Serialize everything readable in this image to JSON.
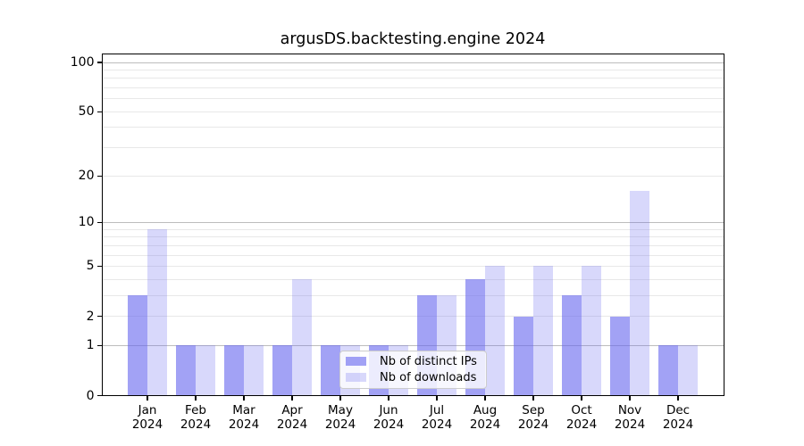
{
  "title": "argusDS.backtesting.engine 2024",
  "chart_data": {
    "type": "bar",
    "title": "argusDS.backtesting.engine 2024",
    "categories": [
      "Jan 2024",
      "Feb 2024",
      "Mar 2024",
      "Apr 2024",
      "May 2024",
      "Jun 2024",
      "Jul 2024",
      "Aug 2024",
      "Sep 2024",
      "Oct 2024",
      "Nov 2024",
      "Dec 2024"
    ],
    "series": [
      {
        "name": "Nb of distinct IPs",
        "color": "#6464ee",
        "alpha": 0.6,
        "values": [
          3,
          1,
          1,
          1,
          1,
          1,
          3,
          4,
          2,
          3,
          2,
          1
        ]
      },
      {
        "name": "Nb of downloads",
        "color": "#6464ee",
        "alpha": 0.25,
        "values": [
          9,
          1,
          1,
          4,
          1,
          1,
          3,
          5,
          5,
          5,
          16,
          1
        ]
      }
    ],
    "xlabel": "",
    "ylabel": "",
    "yscale": "log1p",
    "ylim": [
      0,
      113
    ],
    "yticks": [
      0,
      1,
      2,
      5,
      10,
      20,
      50,
      100
    ],
    "grid": {
      "enabled": true,
      "major_lines": [
        1,
        10,
        100
      ],
      "minor_lines": [
        2,
        3,
        4,
        5,
        6,
        7,
        8,
        9,
        20,
        30,
        40,
        50,
        60,
        70,
        80,
        90
      ],
      "major_color": "#bdbdbd",
      "minor_color": "#e8e8e8"
    },
    "legend": {
      "position": "lower center",
      "entries": [
        "Nb of distinct IPs",
        "Nb of downloads"
      ]
    },
    "axis_color": "#000000",
    "background_color": "#ffffff"
  }
}
